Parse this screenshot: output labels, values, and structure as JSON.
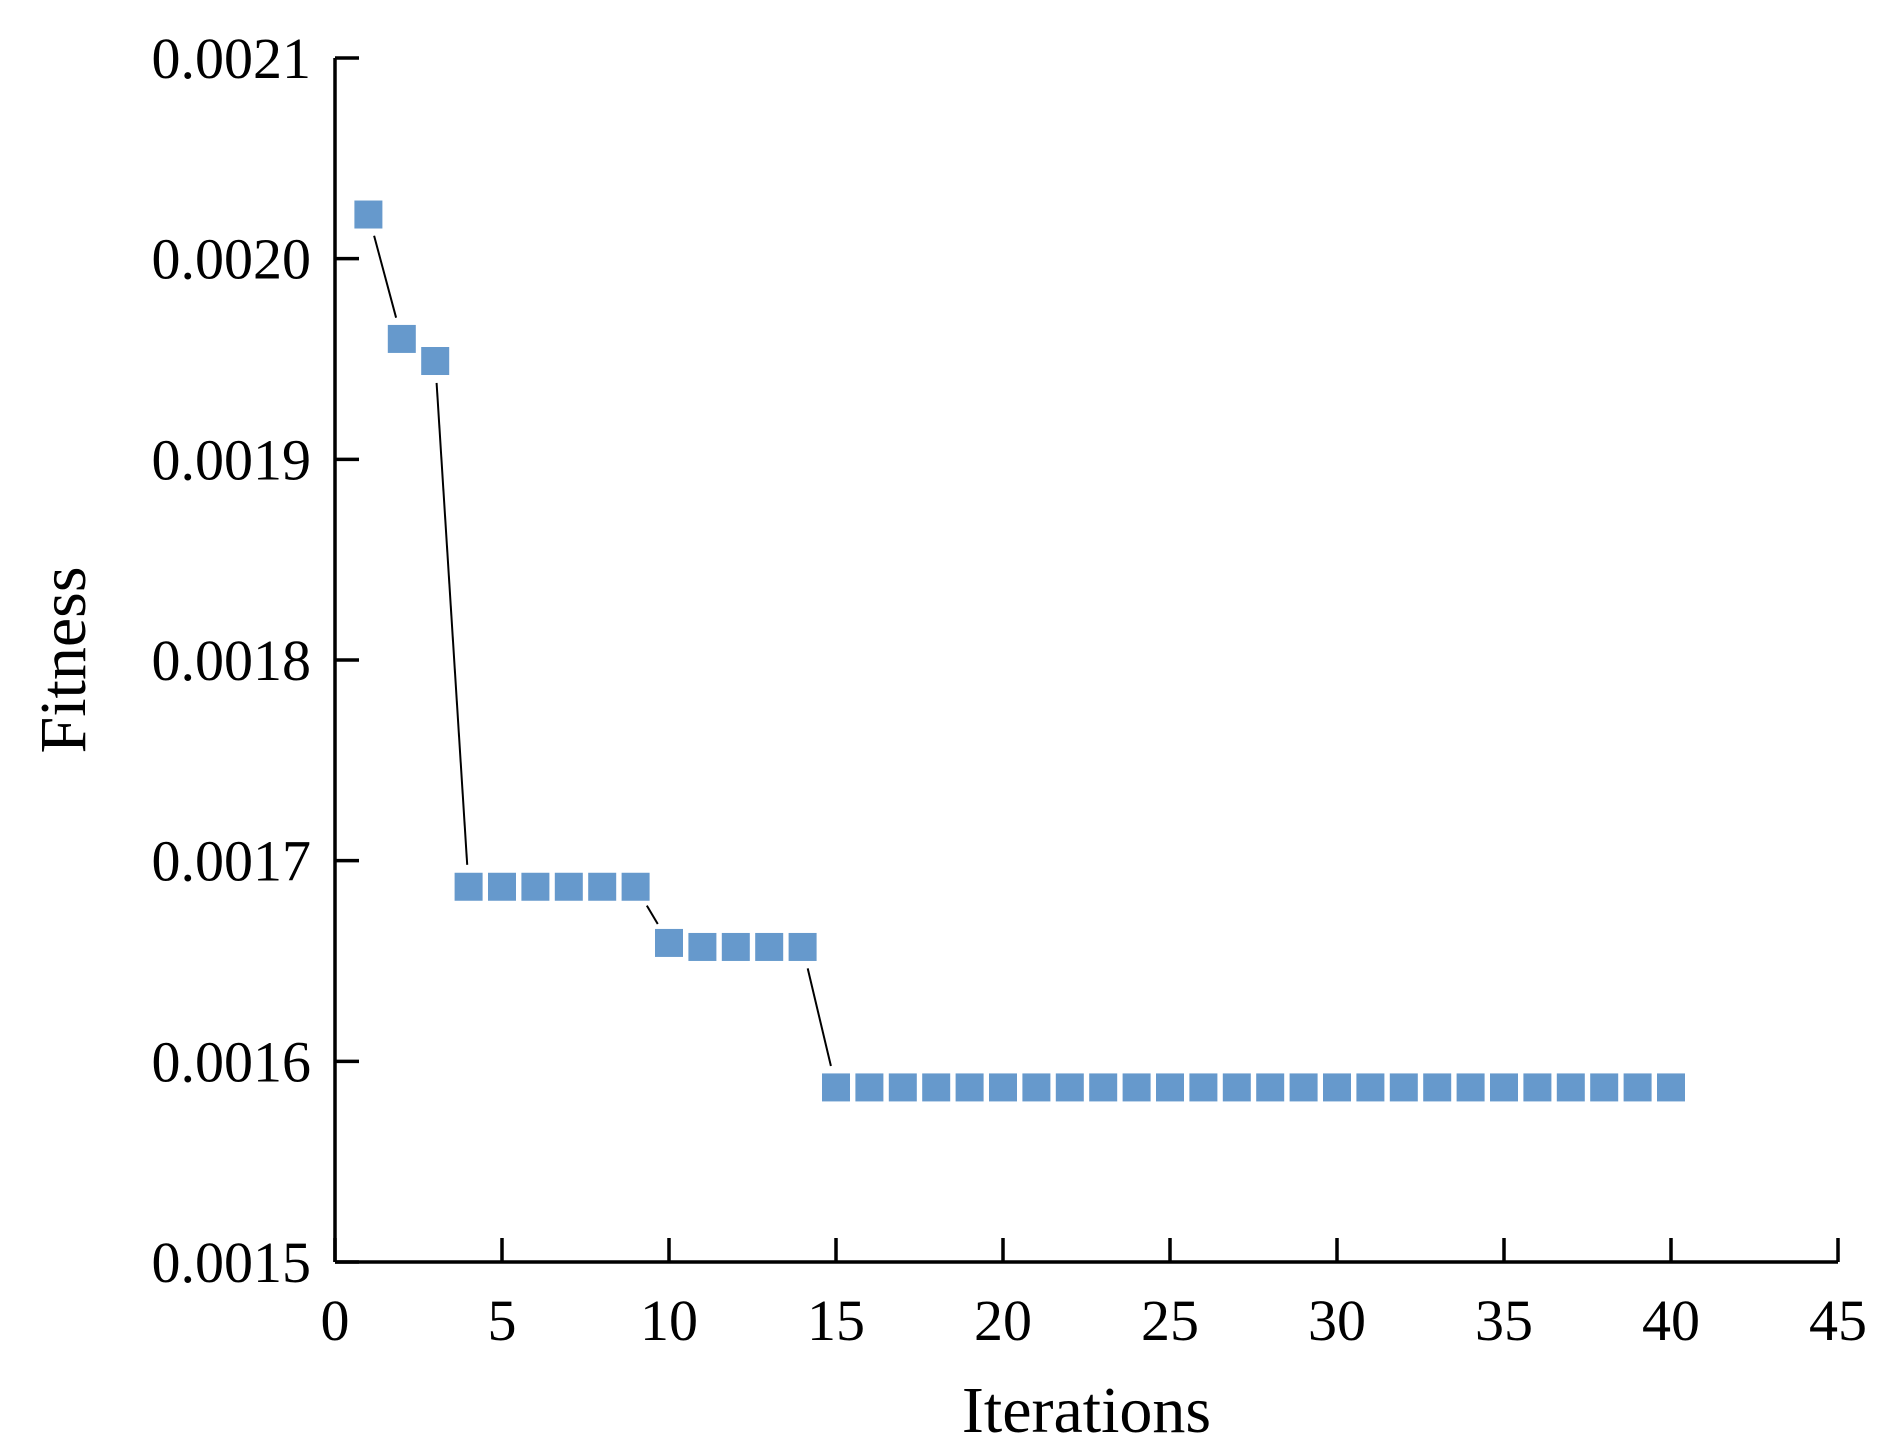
{
  "chart_data": {
    "type": "line",
    "title": "",
    "xlabel": "Iterations",
    "ylabel": "Fitness",
    "xlim": [
      0,
      45
    ],
    "ylim": [
      0.0015,
      0.0021
    ],
    "x_ticks": [
      "0",
      "5",
      "10",
      "15",
      "20",
      "25",
      "30",
      "35",
      "40",
      "45"
    ],
    "x_tick_values": [
      0,
      5,
      10,
      15,
      20,
      25,
      30,
      35,
      40,
      45
    ],
    "y_ticks": [
      "0.0015",
      "0.0016",
      "0.0017",
      "0.0018",
      "0.0019",
      "0.0020",
      "0.0021"
    ],
    "y_tick_values": [
      0.0015,
      0.0016,
      0.0017,
      0.0018,
      0.0019,
      0.002,
      0.0021
    ],
    "grid": false,
    "legend": "none",
    "marker": "square",
    "colors": {
      "marker": "#6699cc",
      "line": "#000000",
      "axis": "#000000"
    },
    "series": [
      {
        "x": [
          1,
          2,
          3,
          4,
          5,
          6,
          7,
          8,
          9,
          10,
          11,
          12,
          13,
          14,
          15,
          16,
          17,
          18,
          19,
          20,
          21,
          22,
          23,
          24,
          25,
          26,
          27,
          28,
          29,
          30,
          31,
          32,
          33,
          34,
          35,
          36,
          37,
          38,
          39,
          40
        ],
        "values": [
          0.002022,
          0.00196,
          0.001949,
          0.001687,
          0.001687,
          0.001687,
          0.001687,
          0.001687,
          0.001687,
          0.001659,
          0.001657,
          0.001657,
          0.001657,
          0.001657,
          0.001587,
          0.001587,
          0.001587,
          0.001587,
          0.001587,
          0.001587,
          0.001587,
          0.001587,
          0.001587,
          0.001587,
          0.001587,
          0.001587,
          0.001587,
          0.001587,
          0.001587,
          0.001587,
          0.001587,
          0.001587,
          0.001587,
          0.001587,
          0.001587,
          0.001587,
          0.001587,
          0.001587,
          0.001587,
          0.001587
        ]
      }
    ]
  }
}
